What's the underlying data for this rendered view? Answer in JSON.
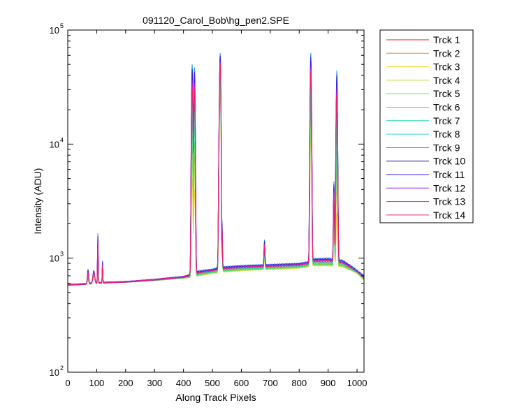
{
  "figure": {
    "background": "#ffffff"
  },
  "chart_data": {
    "type": "line",
    "title": "091120_Carol_Bob\\hg_pen2.SPE",
    "xlabel": "Along Track Pixels",
    "ylabel": "Intensity (ADU)",
    "xlim": [
      0,
      1024
    ],
    "ylim": [
      100,
      100000
    ],
    "yscale": "log",
    "grid": false,
    "legend_position": "outside-right",
    "x_ticks": [
      0,
      100,
      200,
      300,
      400,
      500,
      600,
      700,
      800,
      900,
      1000
    ],
    "x_tick_labels": [
      "0",
      "100",
      "200",
      "300",
      "400",
      "500",
      "600",
      "700",
      "800",
      "900",
      "1000"
    ],
    "y_ticks": [
      {
        "base": "10",
        "exp": "2",
        "value": 100
      },
      {
        "base": "10",
        "exp": "3",
        "value": 1000
      },
      {
        "base": "10",
        "exp": "4",
        "value": 10000
      },
      {
        "base": "10",
        "exp": "5",
        "value": 100000
      }
    ],
    "baseline": {
      "x": [
        0,
        40,
        80,
        120,
        200,
        300,
        400,
        425,
        450,
        500,
        515,
        540,
        600,
        700,
        800,
        830,
        850,
        900,
        950,
        1000,
        1024
      ],
      "high": [
        585,
        590,
        600,
        610,
        620,
        650,
        690,
        720,
        770,
        800,
        820,
        840,
        860,
        880,
        900,
        930,
        990,
        1000,
        960,
        780,
        700
      ],
      "low": [
        585,
        590,
        600,
        610,
        620,
        640,
        670,
        680,
        700,
        740,
        745,
        760,
        780,
        800,
        820,
        840,
        860,
        860,
        840,
        740,
        640
      ]
    },
    "peaks": [
      {
        "x": 70,
        "half_width": 2,
        "peak_high": 800,
        "peak_low": 650
      },
      {
        "x": 90,
        "half_width": 3,
        "peak_high": 780,
        "peak_low": 700
      },
      {
        "x": 104,
        "half_width": 1,
        "peak_high": 1650,
        "peak_low": 850
      },
      {
        "x": 120,
        "half_width": 1,
        "peak_high": 950,
        "peak_low": 700
      },
      {
        "x": 430,
        "half_width": 2,
        "peak_high": 50000,
        "peak_low": 5000
      },
      {
        "x": 438,
        "half_width": 2,
        "peak_high": 47000,
        "peak_low": 4000
      },
      {
        "x": 527,
        "half_width": 2.5,
        "peak_high": 63000,
        "peak_low": 30000
      },
      {
        "x": 532,
        "half_width": 1.5,
        "peak_high": 1650,
        "peak_low": 1000
      },
      {
        "x": 680,
        "half_width": 1.5,
        "peak_high": 1450,
        "peak_low": 1050
      },
      {
        "x": 840,
        "half_width": 2,
        "peak_high": 63000,
        "peak_low": 12000
      },
      {
        "x": 920,
        "half_width": 1.5,
        "peak_high": 4700,
        "peak_low": 2000
      },
      {
        "x": 930,
        "half_width": 2,
        "peak_high": 44000,
        "peak_low": 2500
      }
    ],
    "series": [
      {
        "name": "Trck 1",
        "color": "#e8202a",
        "level": 0.45
      },
      {
        "name": "Trck 2",
        "color": "#f0802a",
        "level": 0.1
      },
      {
        "name": "Trck 3",
        "color": "#f0d81c",
        "level": 0.0
      },
      {
        "name": "Trck 4",
        "color": "#b8e03a",
        "level": 0.05
      },
      {
        "name": "Trck 5",
        "color": "#60e050",
        "level": 0.15
      },
      {
        "name": "Trck 6",
        "color": "#28e080",
        "level": 0.25
      },
      {
        "name": "Trck 7",
        "color": "#20d8b0",
        "level": 0.35
      },
      {
        "name": "Trck 8",
        "color": "#30d8e0",
        "level": 0.55
      },
      {
        "name": "Trck 9",
        "color": "#2090e8",
        "level": 1.0
      },
      {
        "name": "Trck 10",
        "color": "#1c1c8c",
        "level": 0.8
      },
      {
        "name": "Trck 11",
        "color": "#3a1ce0",
        "level": 0.9
      },
      {
        "name": "Trck 12",
        "color": "#9a1ce0",
        "level": 0.7
      },
      {
        "name": "Trck 13",
        "color": "#d020d8",
        "level": 0.65
      },
      {
        "name": "Trck 14",
        "color": "#f0206a",
        "level": 0.6
      }
    ]
  }
}
